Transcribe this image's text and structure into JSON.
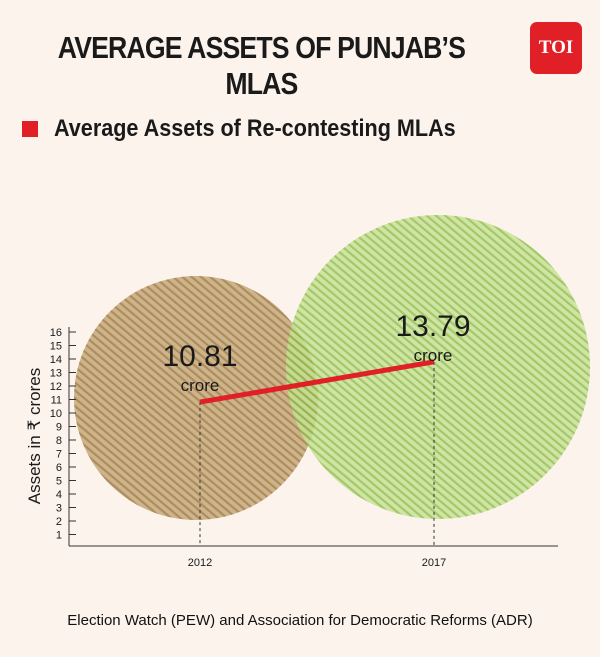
{
  "title": "AVERAGE ASSETS OF PUNJAB’S MLAS",
  "logo_text": "TOI",
  "source": "Election Watch (PEW) and Association for Democratic Reforms (ADR)",
  "colors": {
    "accent_red": "#e01f26",
    "bubble_2012": "#b08a55",
    "bubble_2017": "#8fbf4a",
    "background": "#fbf3ec"
  },
  "chart_data": {
    "type": "line",
    "title": "",
    "legend": [
      {
        "label": "Average Assets of Re-contesting MLAs",
        "color": "#e01f26"
      }
    ],
    "xlabel": "",
    "ylabel": "Assets in ₹ crores",
    "ylim": [
      0,
      16
    ],
    "yticks": [
      1,
      2,
      3,
      4,
      5,
      6,
      7,
      8,
      9,
      10,
      11,
      12,
      13,
      14,
      15,
      16
    ],
    "categories": [
      "2012",
      "2017"
    ],
    "series": [
      {
        "name": "Average Assets of Re-contesting MLAs",
        "values": [
          10.81,
          13.79
        ]
      }
    ],
    "point_labels": [
      {
        "value": "10.81",
        "unit": "crore"
      },
      {
        "value": "13.79",
        "unit": "crore"
      }
    ],
    "grid": false,
    "legend_position": "top-left"
  }
}
